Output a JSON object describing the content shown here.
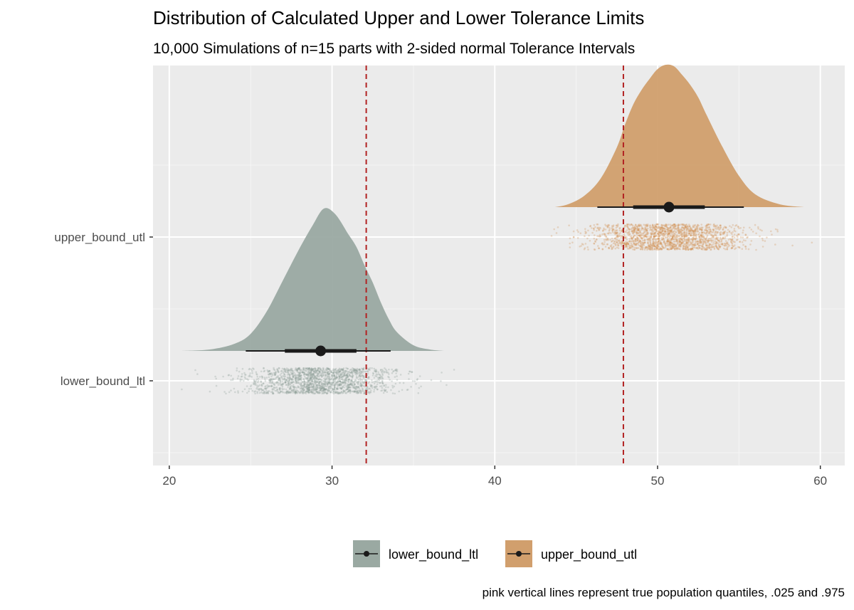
{
  "chart_data": {
    "type": "raincloud",
    "title": "Distribution of Calculated Upper and Lower Tolerance Limits",
    "subtitle": "10,000 Simulations of n=15 parts with 2-sided normal Tolerance Intervals",
    "caption": "pink vertical lines represent true population quantiles, .025 and .975",
    "xlabel": "",
    "ylabel": "",
    "xlim": [
      19,
      61.5
    ],
    "x_ticks": [
      20,
      30,
      40,
      50,
      60
    ],
    "x_tick_labels": [
      "20",
      "30",
      "40",
      "50",
      "60"
    ],
    "categories": [
      "lower_bound_ltl",
      "upper_bound_utl"
    ],
    "grid": true,
    "legend_position": "bottom",
    "reference_lines": [
      32.1,
      47.9
    ],
    "reference_line_color": "#b22222",
    "series": [
      {
        "name": "lower_bound_ltl",
        "color": "#9aa9a2",
        "point_color": "#8a9a93",
        "n": 10000,
        "median": 29.3,
        "interval_66": [
          27.1,
          31.5
        ],
        "interval_95": [
          24.7,
          33.6
        ],
        "range": [
          20.7,
          36.9
        ],
        "density_x": [
          20.7,
          22.5,
          24.0,
          25.0,
          26.0,
          27.0,
          28.0,
          28.8,
          29.5,
          30.2,
          31.0,
          31.5,
          32.0,
          32.5,
          33.0,
          33.5,
          34.0,
          35.0,
          36.0,
          36.9
        ],
        "density_y": [
          0.0,
          0.01,
          0.05,
          0.12,
          0.28,
          0.5,
          0.72,
          0.88,
          1.0,
          0.96,
          0.82,
          0.73,
          0.6,
          0.48,
          0.34,
          0.22,
          0.13,
          0.04,
          0.01,
          0.0
        ]
      },
      {
        "name": "upper_bound_utl",
        "color": "#d19f6d",
        "point_color": "#cf8c4c",
        "n": 10000,
        "median": 50.7,
        "interval_66": [
          48.5,
          52.9
        ],
        "interval_95": [
          46.3,
          55.3
        ],
        "range": [
          43.7,
          59.0
        ],
        "density_x": [
          43.7,
          44.5,
          45.5,
          46.5,
          47.5,
          48.0,
          48.5,
          49.0,
          49.5,
          50.0,
          50.5,
          51.0,
          51.5,
          52.0,
          52.5,
          53.0,
          54.0,
          55.0,
          56.0,
          57.5,
          59.0
        ],
        "density_y": [
          0.0,
          0.02,
          0.08,
          0.2,
          0.42,
          0.58,
          0.72,
          0.82,
          0.9,
          0.97,
          1.0,
          0.99,
          0.93,
          0.86,
          0.77,
          0.65,
          0.42,
          0.22,
          0.09,
          0.02,
          0.0
        ]
      }
    ]
  }
}
